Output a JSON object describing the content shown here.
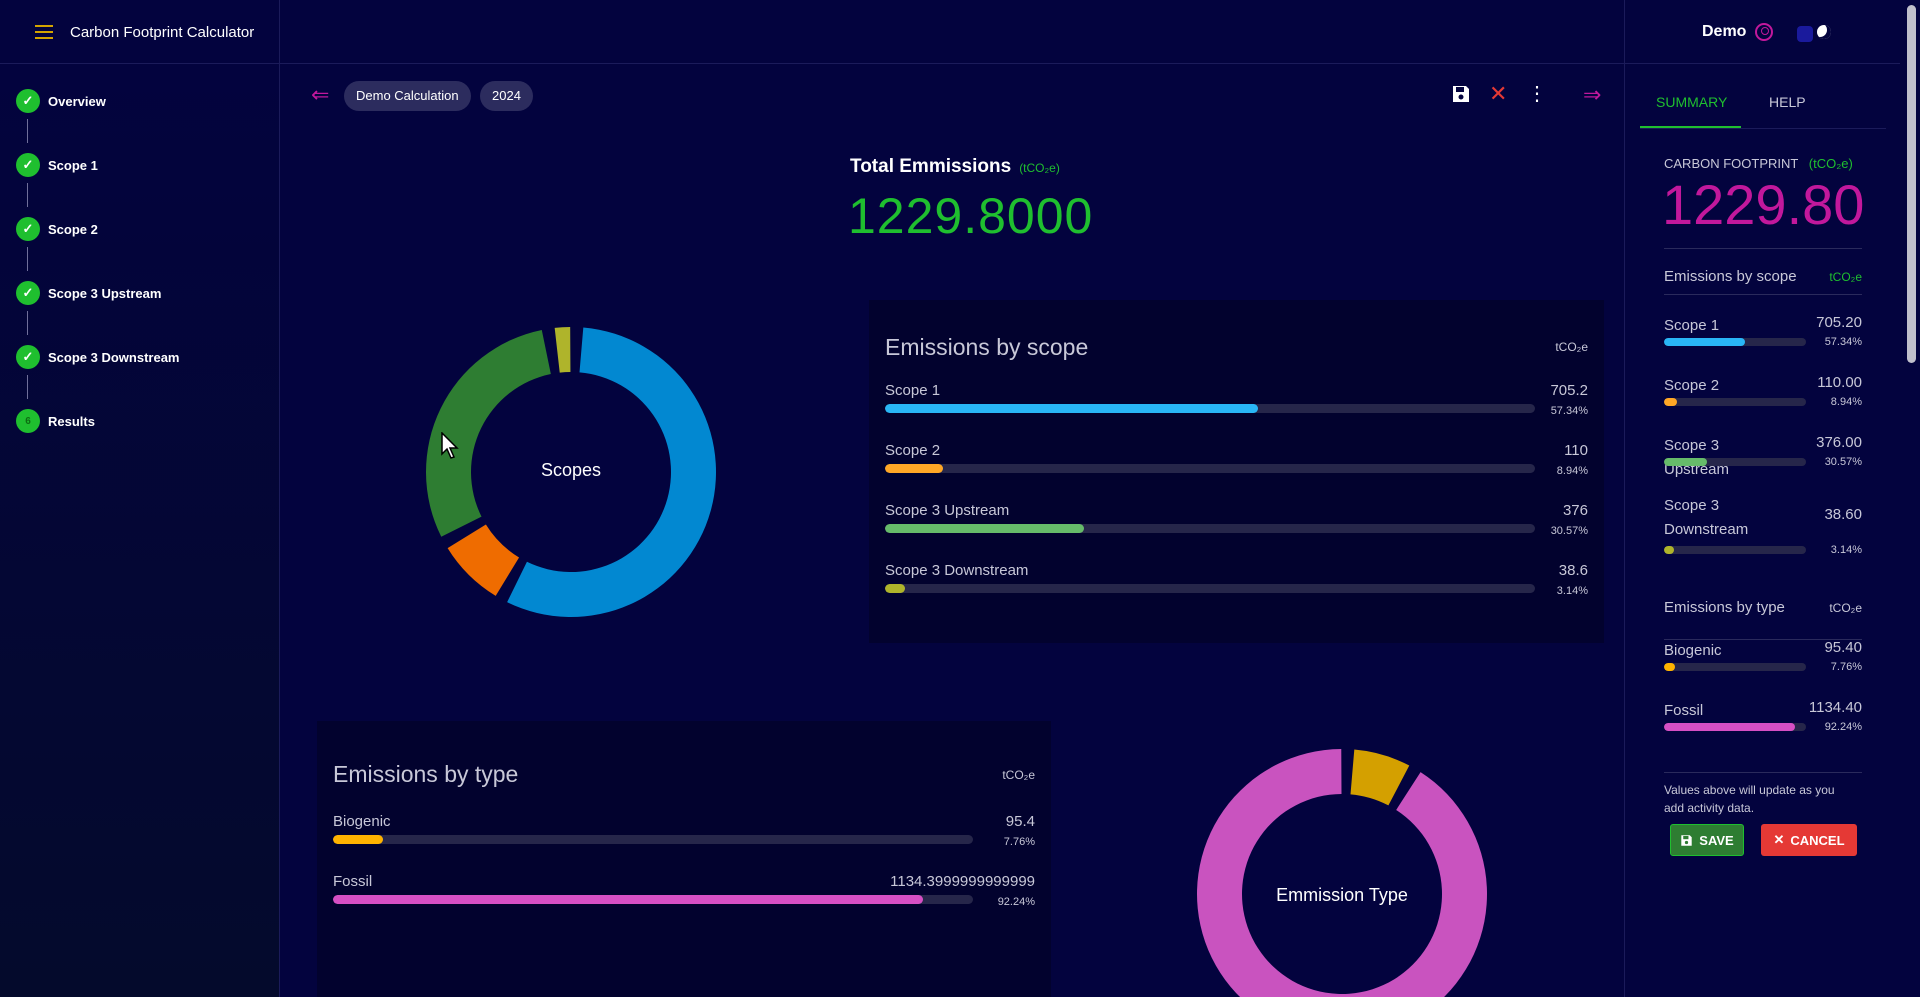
{
  "app": {
    "title": "Carbon Footprint Calculator",
    "user": "Demo",
    "icons": {
      "menu": "hamburger-icon",
      "user": "user-circle-icon",
      "theme": "moon-icon"
    }
  },
  "sidebar": {
    "steps": [
      {
        "label": "Overview",
        "status": "done"
      },
      {
        "label": "Scope 1",
        "status": "done"
      },
      {
        "label": "Scope 2",
        "status": "done"
      },
      {
        "label": "Scope 3 Upstream",
        "status": "done"
      },
      {
        "label": "Scope 3 Downstream",
        "status": "done"
      },
      {
        "label": "Results",
        "status": "current",
        "number": "6"
      }
    ]
  },
  "toolbar": {
    "calculation_name": "Demo Calculation",
    "year": "2024",
    "icons": [
      "arrow-left-icon",
      "save-icon",
      "close-icon",
      "more-vert-icon",
      "arrow-right-icon"
    ]
  },
  "total": {
    "title": "Total Emmissions",
    "unit": "(tCO₂e)",
    "value": "1229.8000"
  },
  "scopes_donut": {
    "label": "Scopes"
  },
  "type_donut": {
    "label": "Emmission Type"
  },
  "by_scope": {
    "title": "Emissions by scope",
    "unit": "tCO₂e",
    "rows": [
      {
        "name": "Scope 1",
        "value": "705.2",
        "pct": "57.34%",
        "color": "#29b6f6"
      },
      {
        "name": "Scope 2",
        "value": "110",
        "pct": "8.94%",
        "color": "#ffa726"
      },
      {
        "name": "Scope 3 Upstream",
        "value": "376",
        "pct": "30.57%",
        "color": "#66bb6a"
      },
      {
        "name": "Scope 3 Downstream",
        "value": "38.6",
        "pct": "3.14%",
        "color": "#afb42b"
      }
    ]
  },
  "by_type": {
    "title": "Emissions by type",
    "unit": "tCO₂e",
    "rows": [
      {
        "name": "Biogenic",
        "value": "95.4",
        "pct": "7.76%",
        "color": "#ffb300"
      },
      {
        "name": "Fossil",
        "value": "1134.3999999999999",
        "pct": "92.24%",
        "color": "#d64fc4"
      }
    ]
  },
  "summary": {
    "tabs": [
      "SUMMARY",
      "HELP"
    ],
    "footprint_label": "CARBON FOOTPRINT",
    "footprint_unit": "(tCO₂e)",
    "footprint_value": "1229.80",
    "scope_title": "Emissions by scope",
    "scope_unit": "tCO₂e",
    "scope_rows": [
      {
        "name": "Scope 1",
        "value": "705.20",
        "pct": "57.34%",
        "color": "#29b6f6"
      },
      {
        "name": "Scope 2",
        "value": "110.00",
        "pct": "8.94%",
        "color": "#ffa726"
      },
      {
        "name": "Scope 3 Upstream",
        "value": "376.00",
        "pct": "30.57%",
        "color": "#66bb6a"
      },
      {
        "name": "Scope 3 Downstream",
        "value": "38.60",
        "pct": "3.14%",
        "color": "#afb42b"
      }
    ],
    "type_title": "Emissions by type",
    "type_unit": "tCO₂e",
    "type_rows": [
      {
        "name": "Biogenic",
        "value": "95.40",
        "pct": "7.76%",
        "color": "#ffb300"
      },
      {
        "name": "Fossil",
        "value": "1134.40",
        "pct": "92.24%",
        "color": "#d64fc4"
      }
    ],
    "note": "Values above will update as you add activity data.",
    "save_label": "SAVE",
    "cancel_label": "CANCEL"
  },
  "colors": {
    "accent": "#c2189c",
    "success": "#1fbf2f",
    "background": "#03033e",
    "cancel": "#e53935",
    "save": "#2e7d32"
  }
}
